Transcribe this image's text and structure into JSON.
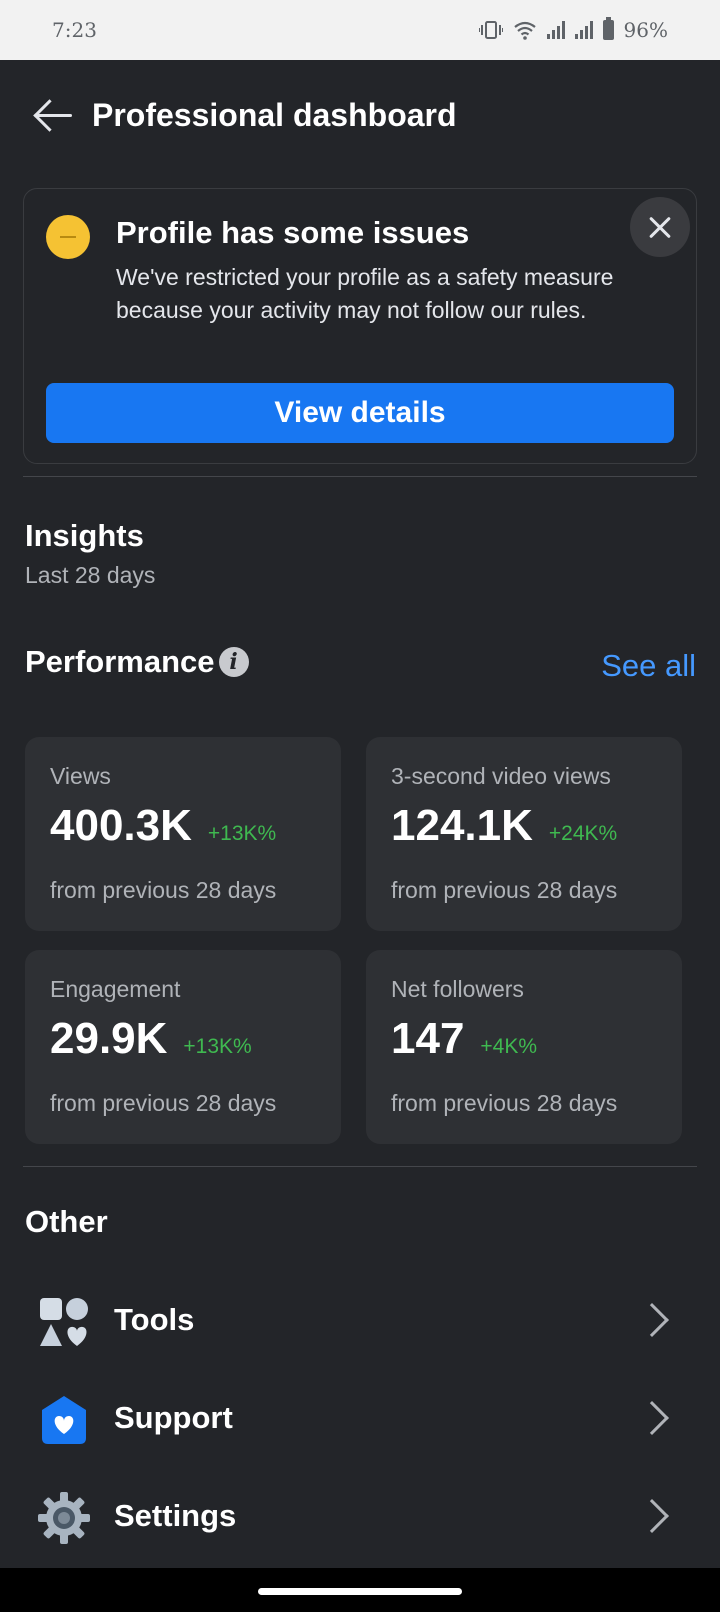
{
  "status_bar": {
    "time": "7:23",
    "battery": "96%"
  },
  "header": {
    "title": "Professional dashboard"
  },
  "alert": {
    "title": "Profile has some issues",
    "message": "We've restricted your profile as a safety measure because your activity may not follow our rules.",
    "button_label": "View details"
  },
  "insights": {
    "title": "Insights",
    "period": "Last 28 days",
    "performance_title": "Performance",
    "see_all": "See all",
    "metrics": [
      {
        "label": "Views",
        "value": "400.3K",
        "change": "+13K%",
        "footnote": "from previous 28 days"
      },
      {
        "label": "3-second video views",
        "value": "124.1K",
        "change": "+24K%",
        "footnote": "from previous 28 days"
      },
      {
        "label": "Engagement",
        "value": "29.9K",
        "change": "+13K%",
        "footnote": "from previous 28 days"
      },
      {
        "label": "Net followers",
        "value": "147",
        "change": "+4K%",
        "footnote": "from previous 28 days"
      }
    ]
  },
  "other": {
    "title": "Other",
    "items": [
      {
        "label": "Tools",
        "icon": "tools-icon"
      },
      {
        "label": "Support",
        "icon": "support-icon"
      },
      {
        "label": "Settings",
        "icon": "gear-icon"
      }
    ]
  },
  "colors": {
    "accent": "#1877f2",
    "link": "#4599ff",
    "positive": "#3fb950",
    "warning": "#f5c233"
  }
}
